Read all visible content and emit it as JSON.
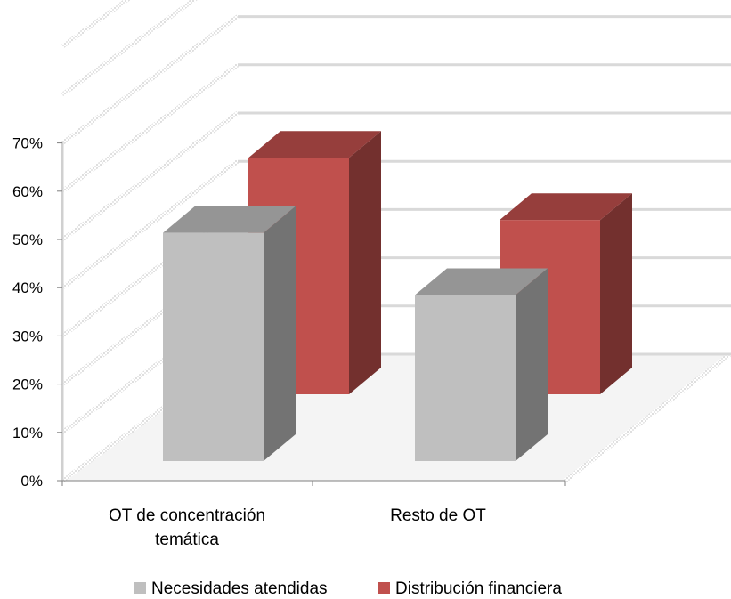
{
  "chart_data": {
    "type": "bar",
    "categories": [
      "OT de concentración temática",
      "Resto de OT"
    ],
    "category_lines": [
      [
        "OT de concentración",
        "temática"
      ],
      [
        "Resto de OT"
      ]
    ],
    "series": [
      {
        "name": "Necesidades atendidas",
        "values": [
          55,
          40
        ],
        "color": "#bfbfbf"
      },
      {
        "name": "Distribución financiera",
        "values": [
          57,
          42
        ],
        "color": "#c0504d"
      }
    ],
    "y_ticks": [
      "0%",
      "10%",
      "20%",
      "30%",
      "40%",
      "50%",
      "60%",
      "70%"
    ],
    "ylim": [
      0,
      70
    ],
    "grid": true,
    "legend_position": "bottom",
    "title": "",
    "xlabel": "",
    "ylabel": ""
  }
}
